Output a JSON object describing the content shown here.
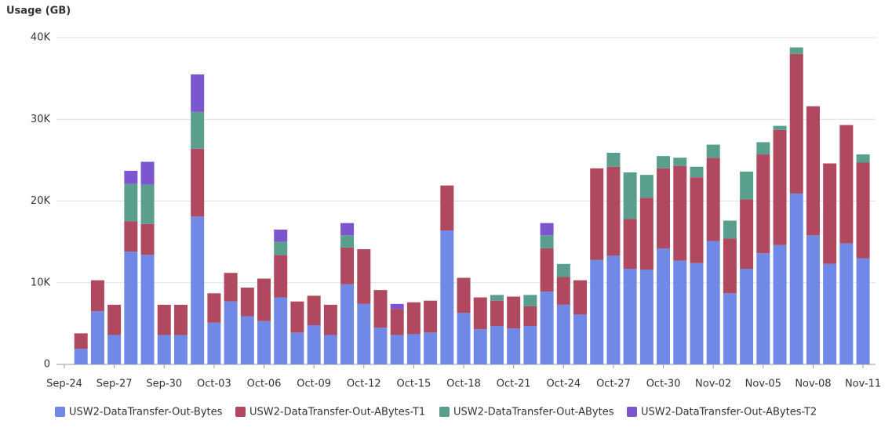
{
  "chart_data": {
    "type": "stacked_bar",
    "y_axis_label": "Usage (GB)",
    "categories": [
      "Sep-24",
      null,
      null,
      "Sep-27",
      null,
      null,
      "Sep-30",
      null,
      null,
      "Oct-03",
      null,
      null,
      "Oct-06",
      null,
      null,
      "Oct-09",
      null,
      null,
      "Oct-12",
      null,
      null,
      "Oct-15",
      null,
      null,
      "Oct-18",
      null,
      null,
      "Oct-21",
      null,
      null,
      "Oct-24",
      null,
      null,
      "Oct-27",
      null,
      null,
      "Oct-30",
      null,
      null,
      "Nov-02",
      null,
      null,
      "Nov-05",
      null,
      null,
      "Nov-08",
      null,
      null,
      "Nov-11"
    ],
    "series": [
      {
        "name": "USW2-DataTransfer-Out-Bytes",
        "color": "#7089e6",
        "values": [
          null,
          1900,
          6500,
          3600,
          13800,
          13400,
          3600,
          3600,
          18100,
          5100,
          7700,
          5900,
          5300,
          8200,
          3900,
          4800,
          3600,
          9800,
          7400,
          4500,
          3600,
          3700,
          3900,
          16400,
          6300,
          4300,
          4700,
          4400,
          4700,
          8900,
          7300,
          6100,
          12800,
          13300,
          11700,
          11600,
          14200,
          12700,
          12400,
          15100,
          8700,
          11700,
          13600,
          14600,
          20900,
          15800,
          12300,
          14800,
          13000
        ]
      },
      {
        "name": "USW2-DataTransfer-Out-ABytes-T1",
        "color": "#b0485f",
        "values": [
          null,
          1900,
          3800,
          3700,
          3700,
          3800,
          3700,
          3700,
          8300,
          3600,
          3500,
          3500,
          5200,
          5200,
          3800,
          3600,
          3700,
          4500,
          6700,
          4600,
          3200,
          3900,
          3900,
          5500,
          4300,
          3900,
          3100,
          3900,
          2400,
          5300,
          3400,
          4200,
          11200,
          10900,
          6100,
          8800,
          9800,
          11600,
          10500,
          10200,
          6700,
          8500,
          12100,
          14100,
          17100,
          15800,
          12300,
          14500,
          11700
        ]
      },
      {
        "name": "USW2-DataTransfer-Out-ABytes",
        "color": "#5a9f8e",
        "values": [
          null,
          0,
          0,
          0,
          4600,
          4800,
          0,
          0,
          4500,
          0,
          0,
          0,
          0,
          1600,
          0,
          0,
          0,
          1500,
          0,
          0,
          0,
          0,
          0,
          0,
          0,
          0,
          700,
          0,
          1400,
          1600,
          1600,
          0,
          0,
          1700,
          5700,
          2800,
          1500,
          1000,
          1300,
          1600,
          2200,
          3400,
          1500,
          500,
          800,
          0,
          0,
          0,
          1000
        ]
      },
      {
        "name": "USW2-DataTransfer-Out-ABytes-T2",
        "color": "#7c56cf",
        "values": [
          null,
          0,
          0,
          0,
          1600,
          2800,
          0,
          0,
          4600,
          0,
          0,
          0,
          0,
          1500,
          0,
          0,
          0,
          1500,
          0,
          0,
          600,
          0,
          0,
          0,
          0,
          0,
          0,
          0,
          0,
          1500,
          0,
          0,
          0,
          0,
          0,
          0,
          0,
          0,
          0,
          0,
          0,
          0,
          0,
          0,
          0,
          0,
          0,
          0,
          0
        ]
      }
    ],
    "ylim": [
      0,
      40000
    ],
    "yticks": [
      0,
      {
        "value": 10000,
        "label": "10K"
      },
      {
        "value": 20000,
        "label": "20K"
      },
      {
        "value": 30000,
        "label": "30K"
      },
      {
        "value": 40000,
        "label": "40K"
      }
    ],
    "grid": true,
    "legend": "bottom"
  }
}
